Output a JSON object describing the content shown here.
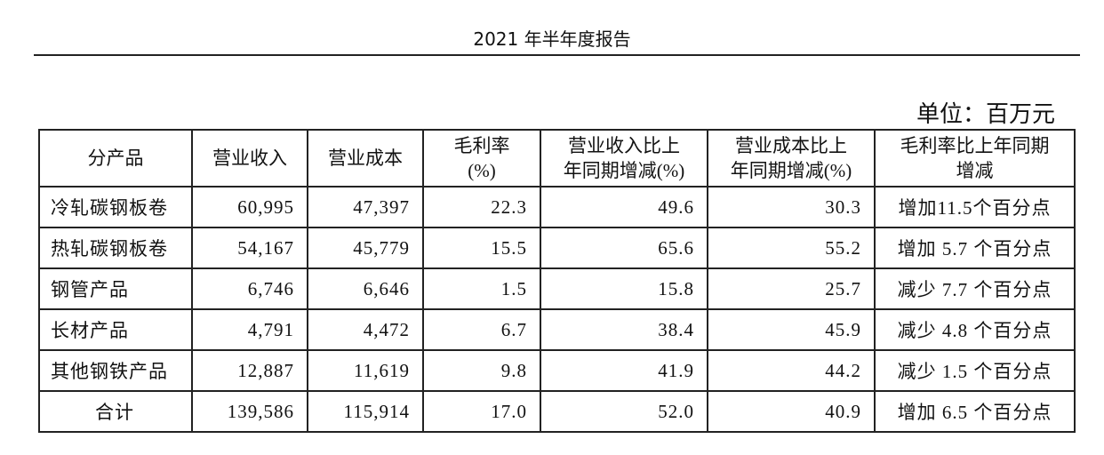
{
  "header": {
    "title": "2021 年半年度报告"
  },
  "unit": "单位：百万元",
  "table": {
    "columns": [
      "分产品",
      "营业收入",
      "营业成本",
      "毛利率\n(%)",
      "营业收入比上\n年同期增减(%)",
      "营业成本比上\n年同期增减(%)",
      "毛利率比上年同期\n增减"
    ],
    "rows": [
      [
        "冷轧碳钢板卷",
        "60,995",
        "47,397",
        "22.3",
        "49.6",
        "30.3",
        "增加11.5个百分点"
      ],
      [
        "热轧碳钢板卷",
        "54,167",
        "45,779",
        "15.5",
        "65.6",
        "55.2",
        "增加 5.7 个百分点"
      ],
      [
        "钢管产品",
        "6,746",
        "6,646",
        "1.5",
        "15.8",
        "25.7",
        "减少 7.7 个百分点"
      ],
      [
        "长材产品",
        "4,791",
        "4,472",
        "6.7",
        "38.4",
        "45.9",
        "减少 4.8 个百分点"
      ],
      [
        "其他钢铁产品",
        "12,887",
        "11,619",
        "9.8",
        "41.9",
        "44.2",
        "减少 1.5 个百分点"
      ],
      [
        "合计",
        "139,586",
        "115,914",
        "17.0",
        "52.0",
        "40.9",
        "增加 6.5 个百分点"
      ]
    ]
  }
}
